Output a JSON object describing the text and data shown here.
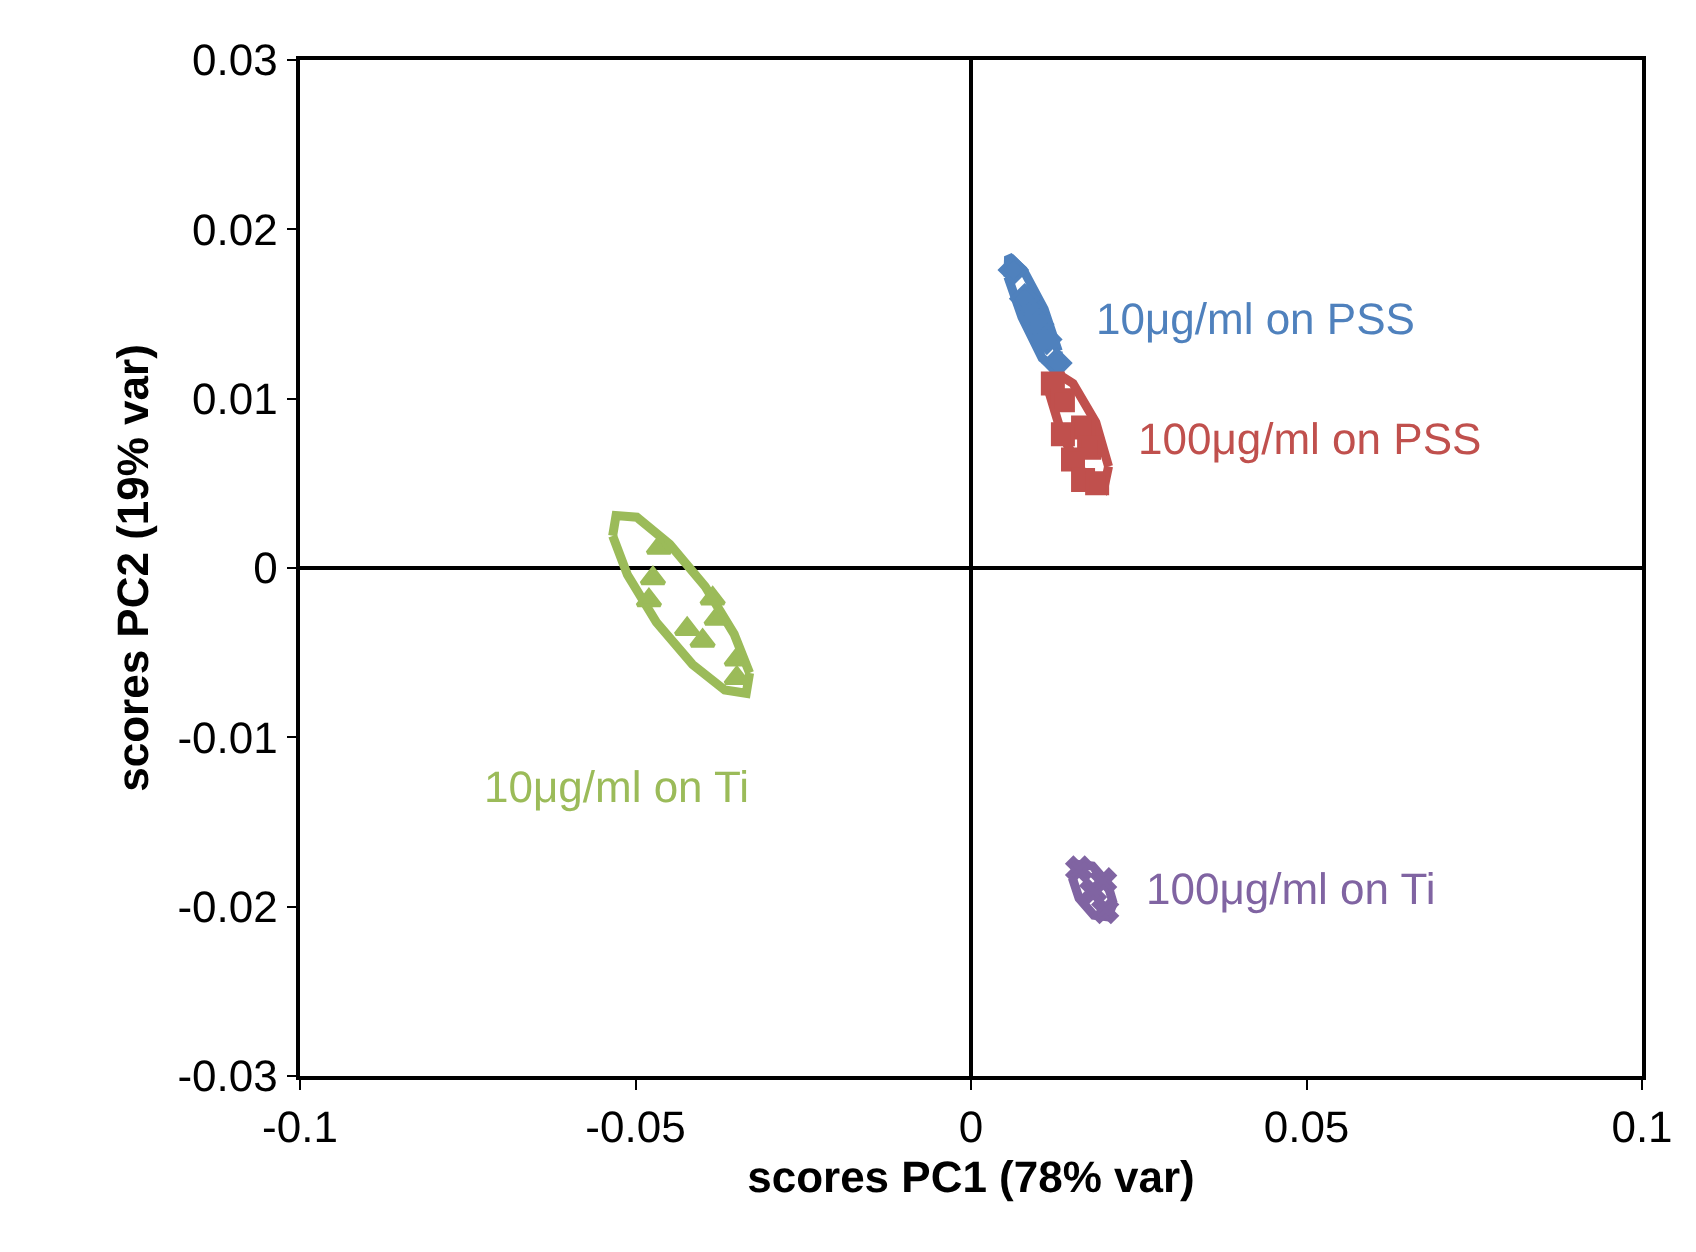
{
  "chart_data": {
    "type": "scatter",
    "xlabel": "scores PC1 (78% var)",
    "ylabel": "scores PC2 (19% var)",
    "xlim": [
      -0.1,
      0.1
    ],
    "xticks": [
      -0.1,
      -0.05,
      0,
      0.05,
      0.1
    ],
    "ylim": [
      -0.03,
      0.03
    ],
    "yticks": [
      -0.03,
      -0.02,
      -0.01,
      0,
      0.01,
      0.02,
      0.03
    ],
    "legend": false,
    "series": [
      {
        "type": "line",
        "color": "#000000",
        "x": [
          0,
          0
        ],
        "values": [
          -0.03,
          0.03
        ]
      },
      {
        "type": "line",
        "color": "#000000",
        "x": [
          -0.1,
          0.1
        ],
        "values": [
          0,
          0
        ]
      },
      {
        "type": "line",
        "color": "#4f81bd",
        "x": [
          0.0055,
          0.0056,
          0.0078,
          0.0109,
          0.013
        ],
        "values": [
          0.0172,
          0.0184,
          0.0176,
          0.0153,
          0.0128
        ]
      },
      {
        "type": "line",
        "color": "#4f81bd",
        "x": [
          0.0055,
          0.0076,
          0.0106,
          0.0128,
          0.013
        ],
        "values": [
          0.0172,
          0.0148,
          0.0124,
          0.0117,
          0.0128
        ]
      },
      {
        "type": "line",
        "color": "#c0504d",
        "x": [
          0.0117,
          0.0124,
          0.0152,
          0.0186,
          0.0205
        ],
        "values": [
          0.0103,
          0.0116,
          0.0109,
          0.0086,
          0.006
        ]
      },
      {
        "type": "line",
        "color": "#c0504d",
        "x": [
          0.0117,
          0.0136,
          0.017,
          0.0198,
          0.0205
        ],
        "values": [
          0.0103,
          0.0078,
          0.0054,
          0.0047,
          0.006
        ]
      },
      {
        "type": "line",
        "color": "#9bbb59",
        "x": [
          -0.0534,
          -0.0529,
          -0.0498,
          -0.0449,
          -0.0396,
          -0.0353,
          -0.033
        ],
        "values": [
          0.0019,
          0.0031,
          0.003,
          0.0014,
          -0.0011,
          -0.0039,
          -0.0062
        ]
      },
      {
        "type": "line",
        "color": "#9bbb59",
        "x": [
          -0.0534,
          -0.0512,
          -0.0469,
          -0.0415,
          -0.0367,
          -0.0335,
          -0.033
        ],
        "values": [
          0.0019,
          -0.0004,
          -0.0032,
          -0.0057,
          -0.0072,
          -0.0074,
          -0.0062
        ]
      },
      {
        "type": "line",
        "color": "#8064a2",
        "x": [
          0.0151,
          0.0159,
          0.0181,
          0.0203,
          0.0212
        ],
        "values": [
          -0.0183,
          -0.0175,
          -0.0176,
          -0.0186,
          -0.0198
        ]
      },
      {
        "type": "line",
        "color": "#8064a2",
        "x": [
          0.0151,
          0.0161,
          0.0183,
          0.0204,
          0.0212
        ],
        "values": [
          -0.0183,
          -0.0195,
          -0.0205,
          -0.0206,
          -0.0198
        ]
      },
      {
        "name": "10μg/ml on PSS",
        "color": "#4f81bd",
        "marker": "diamond",
        "x": [
          0.0063,
          0.0072,
          0.008,
          0.0092,
          0.0101,
          0.0113,
          0.0122,
          0.0128
        ],
        "values": [
          0.0176,
          null,
          0.0159,
          0.015,
          0.0144,
          0.0135,
          null,
          0.0121
        ]
      },
      {
        "name": "100μg/ml on PSS",
        "color": "#c0504d",
        "marker": "square",
        "x": [
          0.0122,
          0.0137,
          0.0167,
          0.0137,
          0.0176,
          0.0152,
          0.0167,
          0.0188
        ],
        "values": [
          0.0109,
          0.0099,
          0.0083,
          0.0079,
          0.0071,
          0.0064,
          0.0052,
          0.005
        ]
      },
      {
        "name": "10μg/ml on Ti",
        "color": "#9bbb59",
        "marker": "triangle",
        "x": [
          -0.0465,
          -0.0474,
          -0.048,
          -0.0385,
          -0.0423,
          -0.04,
          -0.0379,
          -0.0349,
          -0.0349
        ],
        "values": [
          0.0012,
          -0.0006,
          -0.0019,
          -0.0018,
          -0.0036,
          -0.0043,
          -0.003,
          -0.0054,
          -0.0065
        ]
      },
      {
        "name": "100μg/ml on Ti",
        "color": "#8064a2",
        "marker": "cross",
        "x": [
          0.0161,
          0.0182,
          0.02,
          0.0197
        ],
        "values": [
          -0.0178,
          -0.0191,
          -0.0202,
          -0.0185
        ]
      }
    ]
  }
}
